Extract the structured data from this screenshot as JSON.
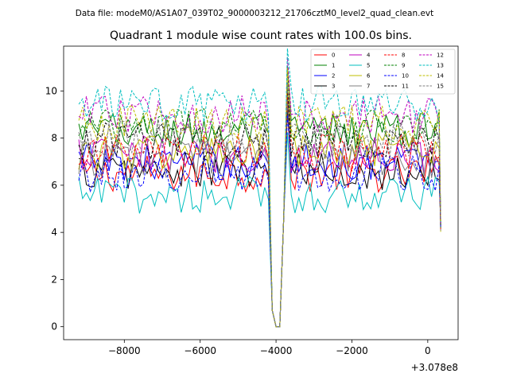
{
  "chart_data": {
    "type": "line",
    "suptitle": "Data file: modeM0/AS1A07_039T02_9000003212_21706cztM0_level2_quad_clean.evt",
    "title": "Quadrant 1 module wise count rates with 100.0s bins.",
    "xlabel": "",
    "ylabel": "",
    "x_offset_label": "+3.078e8",
    "xlim": [
      -9600,
      800
    ],
    "ylim": [
      -0.55,
      11.9
    ],
    "xticks": [
      -8000,
      -6000,
      -4000,
      -2000,
      0
    ],
    "xtick_labels": [
      "−8000",
      "−6000",
      "−4000",
      "−2000",
      "0"
    ],
    "yticks": [
      0,
      2,
      4,
      6,
      8,
      10
    ],
    "ytick_labels": [
      "0",
      "2",
      "4",
      "6",
      "8",
      "10"
    ],
    "legend": {
      "position": "top-right",
      "columns": 4
    },
    "series": [
      {
        "name": "0",
        "color": "#ff0000",
        "dash": "solid",
        "base": 6.5
      },
      {
        "name": "1",
        "color": "#008000",
        "dash": "solid",
        "base": 8.3
      },
      {
        "name": "2",
        "color": "#0000ff",
        "dash": "solid",
        "base": 7.0
      },
      {
        "name": "3",
        "color": "#000000",
        "dash": "solid",
        "base": 6.6
      },
      {
        "name": "4",
        "color": "#bf00bf",
        "dash": "solid",
        "base": 7.3
      },
      {
        "name": "5",
        "color": "#00bfbf",
        "dash": "solid",
        "base": 5.6
      },
      {
        "name": "6",
        "color": "#bfbf00",
        "dash": "solid",
        "base": 7.4
      },
      {
        "name": "7",
        "color": "#808080",
        "dash": "solid",
        "base": 7.1
      },
      {
        "name": "8",
        "color": "#ff0000",
        "dash": "dashed",
        "base": 7.4
      },
      {
        "name": "9",
        "color": "#008000",
        "dash": "dashed",
        "base": 8.5
      },
      {
        "name": "10",
        "color": "#0000ff",
        "dash": "dashed",
        "base": 6.5
      },
      {
        "name": "11",
        "color": "#000000",
        "dash": "dashed",
        "base": 7.9
      },
      {
        "name": "12",
        "color": "#bf00bf",
        "dash": "dashed",
        "base": 9.0
      },
      {
        "name": "13",
        "color": "#00bfbf",
        "dash": "dashed",
        "base": 9.4
      },
      {
        "name": "14",
        "color": "#bfbf00",
        "dash": "dashed",
        "base": 8.6
      },
      {
        "name": "15",
        "color": "#808080",
        "dash": "dashed",
        "base": 8.0
      }
    ],
    "time_range": [
      -9200,
      340
    ],
    "bin_size": 100,
    "dip_points": [
      [
        -4100,
        0.7
      ],
      [
        -4000,
        0.0
      ],
      [
        -3900,
        0.0
      ],
      [
        -3800,
        4.5
      ]
    ],
    "end_value": 4.3
  }
}
